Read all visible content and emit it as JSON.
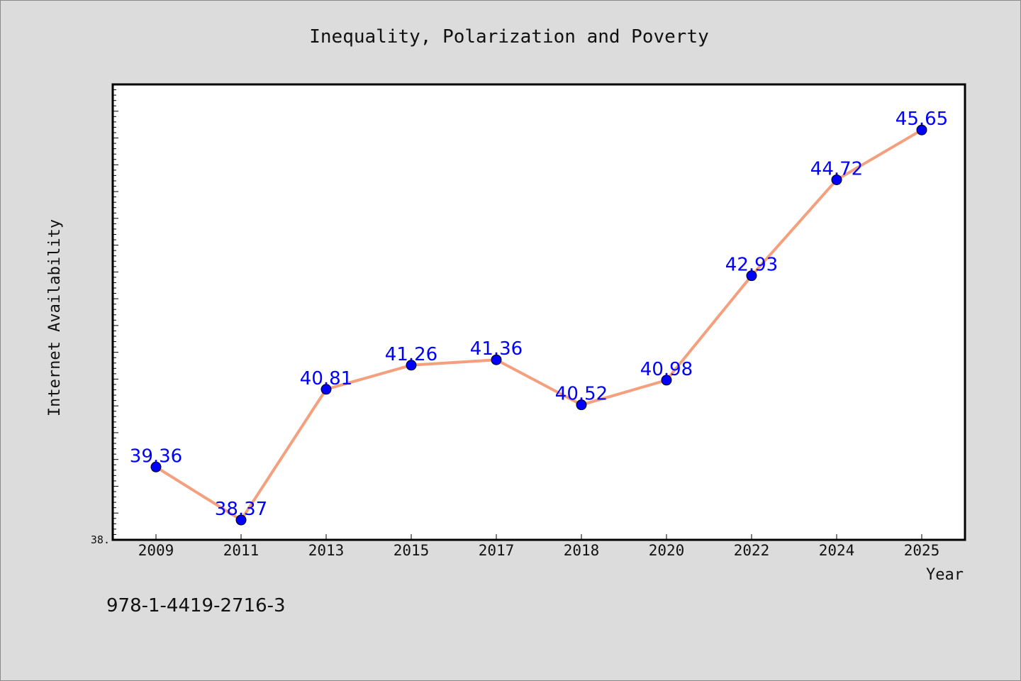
{
  "chart_data": {
    "type": "line",
    "title": "Inequality, Polarization and Poverty",
    "xlabel": "Year",
    "ylabel": "Internet Availability",
    "categories": [
      "2009",
      "2011",
      "2013",
      "2015",
      "2017",
      "2018",
      "2020",
      "2022",
      "2024",
      "2025"
    ],
    "series": [
      {
        "values": [
          39.36,
          38.37,
          40.81,
          41.26,
          41.36,
          40.52,
          40.98,
          42.93,
          44.72,
          45.65
        ]
      }
    ],
    "data_labels": [
      "39.36",
      "38.37",
      "40.81",
      "41.26",
      "41.36",
      "40.52",
      "40.98",
      "42.93",
      "44.72",
      "45.65"
    ],
    "y_tick_label": "38.",
    "ylim": [
      38.0,
      46.5
    ],
    "grid": false,
    "colors": {
      "line": "#f4a07e",
      "marker": "#0000ff",
      "data_label": "#0000ff",
      "plot_background": "#ffffff",
      "figure_background": "#dcdcdc"
    }
  },
  "footer": {
    "isbn": "978-1-4419-2716-3"
  }
}
